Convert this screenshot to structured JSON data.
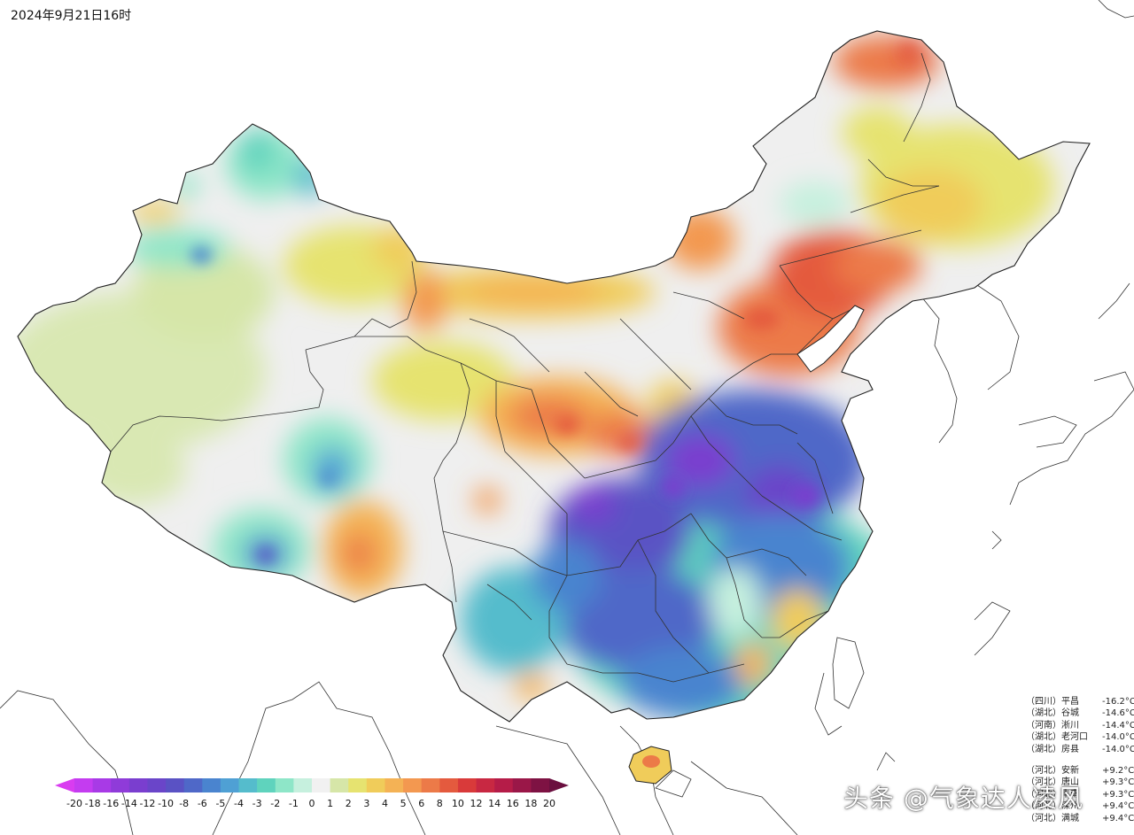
{
  "title": "2024年9月21日16时",
  "stations_cold": [
    {
      "prov": "（四川）",
      "city": "平昌",
      "value": "-16.2°C"
    },
    {
      "prov": "（湖北）",
      "city": "谷城",
      "value": "-14.6°C"
    },
    {
      "prov": "（河南）",
      "city": "淅川",
      "value": "-14.4°C"
    },
    {
      "prov": "（湖北）",
      "city": "老河口",
      "value": "-14.0°C"
    },
    {
      "prov": "（湖北）",
      "city": "房县",
      "value": "-14.0°C"
    }
  ],
  "stations_warm": [
    {
      "prov": "（河北）",
      "city": "安新",
      "value": "+9.2°C"
    },
    {
      "prov": "（河北）",
      "city": "唐山",
      "value": "+9.3°C"
    },
    {
      "prov": "（河北）",
      "city": "丰南",
      "value": "+9.3°C"
    },
    {
      "prov": "（河北）",
      "city": "滦州",
      "value": "+9.4°C"
    },
    {
      "prov": "（河北）",
      "city": "满城",
      "value": "+9.4°C"
    }
  ],
  "legend": {
    "ticks": [
      "-20",
      "-18",
      "-16",
      "-14",
      "-12",
      "-10",
      "-8",
      "-6",
      "-5",
      "-4",
      "-3",
      "-2",
      "-1",
      "0",
      "1",
      "2",
      "3",
      "4",
      "5",
      "6",
      "8",
      "10",
      "12",
      "14",
      "16",
      "18",
      "20"
    ],
    "colors": [
      "#c43cf0",
      "#a83ae6",
      "#8f3bd9",
      "#7a3ecf",
      "#6a45c9",
      "#5a52c4",
      "#4f68c8",
      "#4a84cf",
      "#4fa0d4",
      "#55bccc",
      "#5fd3bd",
      "#8ee6c8",
      "#c6f0de",
      "#f1f1f1",
      "#d6e6a8",
      "#e6e370",
      "#f0cc5a",
      "#f4b255",
      "#f39850",
      "#ec7a48",
      "#e45a3e",
      "#d93a3a",
      "#c82842",
      "#b51c48",
      "#9a1748",
      "#7e1243"
    ]
  },
  "watermark": "头条 @气象达人凌风"
}
